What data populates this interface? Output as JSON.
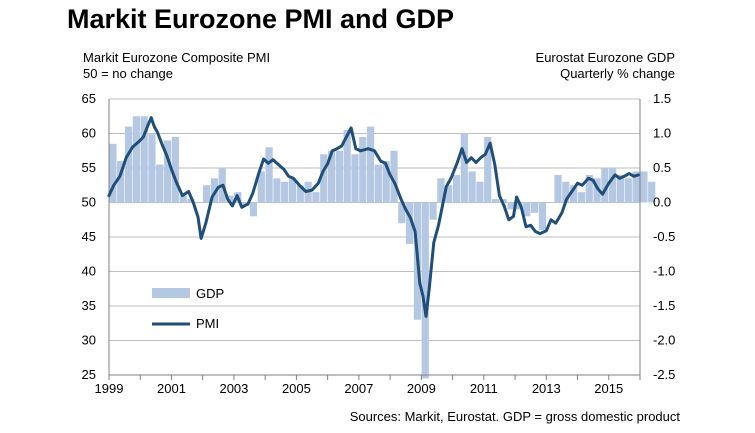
{
  "title": "Markit Eurozone PMI and GDP",
  "left_axis_title": [
    "Markit Eurozone Composite PMI",
    "50 = no change"
  ],
  "right_axis_title": [
    "Eurostat Eurozone GDP",
    "Quarterly % change"
  ],
  "source": "Sources: Markit, Eurostat. GDP = gross domestic product",
  "colors": {
    "pmi": "#1f4e79",
    "gdp": "#b4c8e4",
    "grid": "#bfbfbf",
    "axis": "#808080"
  },
  "chart_data": {
    "type": "bar+line",
    "title": "Markit Eurozone PMI and GDP",
    "grid": true,
    "legend_position": "lower-left",
    "x_ticks": [
      "1999",
      "2001",
      "2003",
      "2005",
      "2007",
      "2009",
      "2011",
      "2013",
      "2015"
    ],
    "xlim": [
      1999,
      2016
    ],
    "y_left": {
      "label": "Markit Eurozone Composite PMI",
      "ylim": [
        25,
        65
      ],
      "ticks": [
        25,
        30,
        35,
        40,
        45,
        50,
        55,
        60,
        65
      ]
    },
    "y_right": {
      "label": "Eurostat Eurozone GDP",
      "ylim": [
        -2.5,
        1.5
      ],
      "ticks": [
        -2.5,
        -2.0,
        -1.5,
        -1.0,
        -0.5,
        0.0,
        0.5,
        1.0,
        1.5
      ]
    },
    "series": [
      {
        "name": "GDP",
        "type": "bar",
        "axis": "right",
        "start_year": 1999,
        "quarters": [
          0.85,
          0.6,
          1.1,
          1.25,
          1.25,
          1.0,
          0.55,
          0.9,
          0.95,
          0.1,
          0.05,
          0.0,
          0.25,
          0.35,
          0.5,
          0.1,
          0.15,
          -0.05,
          -0.2,
          0.45,
          0.8,
          0.35,
          0.3,
          0.35,
          0.25,
          0.3,
          0.15,
          0.7,
          0.75,
          0.75,
          1.05,
          0.7,
          0.95,
          1.1,
          0.55,
          0.6,
          0.75,
          -0.3,
          -0.6,
          -1.7,
          -2.55,
          -0.25,
          0.35,
          0.25,
          0.4,
          1.0,
          0.45,
          0.3,
          0.95,
          0.05,
          0.05,
          -0.1,
          -0.1,
          -0.2,
          -0.15,
          -0.4,
          0.0,
          0.4,
          0.3,
          0.25,
          0.15,
          0.4,
          0.35,
          0.5,
          0.5,
          0.4,
          0.35,
          0.45,
          0.45,
          0.3
        ]
      },
      {
        "name": "PMI",
        "type": "line",
        "axis": "left",
        "points": [
          [
            1999.0,
            51.0
          ],
          [
            1999.15,
            52.5
          ],
          [
            1999.35,
            53.8
          ],
          [
            1999.55,
            56.5
          ],
          [
            1999.75,
            58.0
          ],
          [
            1999.95,
            58.8
          ],
          [
            2000.1,
            59.5
          ],
          [
            2000.25,
            61.2
          ],
          [
            2000.35,
            62.3
          ],
          [
            2000.45,
            61.0
          ],
          [
            2000.55,
            60.2
          ],
          [
            2000.7,
            58.4
          ],
          [
            2000.85,
            56.8
          ],
          [
            2001.0,
            54.8
          ],
          [
            2001.15,
            53.0
          ],
          [
            2001.35,
            51.0
          ],
          [
            2001.55,
            51.6
          ],
          [
            2001.7,
            50.0
          ],
          [
            2001.85,
            47.9
          ],
          [
            2001.95,
            44.8
          ],
          [
            2002.1,
            47.0
          ],
          [
            2002.3,
            50.8
          ],
          [
            2002.5,
            52.2
          ],
          [
            2002.65,
            52.5
          ],
          [
            2002.8,
            50.5
          ],
          [
            2002.95,
            49.5
          ],
          [
            2003.1,
            51.0
          ],
          [
            2003.25,
            49.3
          ],
          [
            2003.45,
            49.8
          ],
          [
            2003.6,
            51.3
          ],
          [
            2003.8,
            54.3
          ],
          [
            2003.95,
            56.3
          ],
          [
            2004.1,
            55.7
          ],
          [
            2004.25,
            56.2
          ],
          [
            2004.45,
            55.4
          ],
          [
            2004.6,
            54.8
          ],
          [
            2004.75,
            53.8
          ],
          [
            2004.9,
            53.5
          ],
          [
            2005.1,
            52.5
          ],
          [
            2005.3,
            51.6
          ],
          [
            2005.5,
            51.8
          ],
          [
            2005.7,
            52.8
          ],
          [
            2005.85,
            54.5
          ],
          [
            2006.0,
            55.6
          ],
          [
            2006.15,
            57.5
          ],
          [
            2006.3,
            57.8
          ],
          [
            2006.45,
            58.2
          ],
          [
            2006.6,
            59.5
          ],
          [
            2006.75,
            60.8
          ],
          [
            2006.9,
            57.8
          ],
          [
            2007.05,
            57.5
          ],
          [
            2007.3,
            57.8
          ],
          [
            2007.5,
            57.5
          ],
          [
            2007.7,
            56.0
          ],
          [
            2007.85,
            55.7
          ],
          [
            2008.0,
            54.0
          ],
          [
            2008.15,
            52.8
          ],
          [
            2008.35,
            50.5
          ],
          [
            2008.5,
            49.0
          ],
          [
            2008.65,
            47.8
          ],
          [
            2008.8,
            45.8
          ],
          [
            2008.95,
            38.3
          ],
          [
            2009.05,
            36.5
          ],
          [
            2009.15,
            33.5
          ],
          [
            2009.25,
            37.5
          ],
          [
            2009.4,
            44.2
          ],
          [
            2009.55,
            46.7
          ],
          [
            2009.65,
            49.0
          ],
          [
            2009.8,
            52.3
          ],
          [
            2009.95,
            53.5
          ],
          [
            2010.15,
            55.8
          ],
          [
            2010.3,
            57.8
          ],
          [
            2010.45,
            55.8
          ],
          [
            2010.6,
            56.5
          ],
          [
            2010.75,
            55.8
          ],
          [
            2010.9,
            56.5
          ],
          [
            2011.05,
            57.0
          ],
          [
            2011.2,
            58.6
          ],
          [
            2011.35,
            55.5
          ],
          [
            2011.5,
            51.0
          ],
          [
            2011.65,
            49.5
          ],
          [
            2011.8,
            47.5
          ],
          [
            2011.95,
            48.0
          ],
          [
            2012.05,
            50.8
          ],
          [
            2012.2,
            49.3
          ],
          [
            2012.35,
            46.5
          ],
          [
            2012.5,
            46.7
          ],
          [
            2012.65,
            45.8
          ],
          [
            2012.8,
            45.5
          ],
          [
            2013.0,
            45.9
          ],
          [
            2013.15,
            47.5
          ],
          [
            2013.3,
            47.0
          ],
          [
            2013.5,
            48.5
          ],
          [
            2013.65,
            50.5
          ],
          [
            2013.85,
            51.8
          ],
          [
            2014.0,
            52.8
          ],
          [
            2014.15,
            52.5
          ],
          [
            2014.35,
            53.5
          ],
          [
            2014.5,
            53.2
          ],
          [
            2014.65,
            52.0
          ],
          [
            2014.8,
            51.2
          ],
          [
            2015.0,
            52.8
          ],
          [
            2015.2,
            54.0
          ],
          [
            2015.35,
            53.5
          ],
          [
            2015.5,
            53.8
          ],
          [
            2015.65,
            54.2
          ],
          [
            2015.8,
            53.8
          ],
          [
            2015.95,
            54.0
          ]
        ]
      }
    ]
  }
}
